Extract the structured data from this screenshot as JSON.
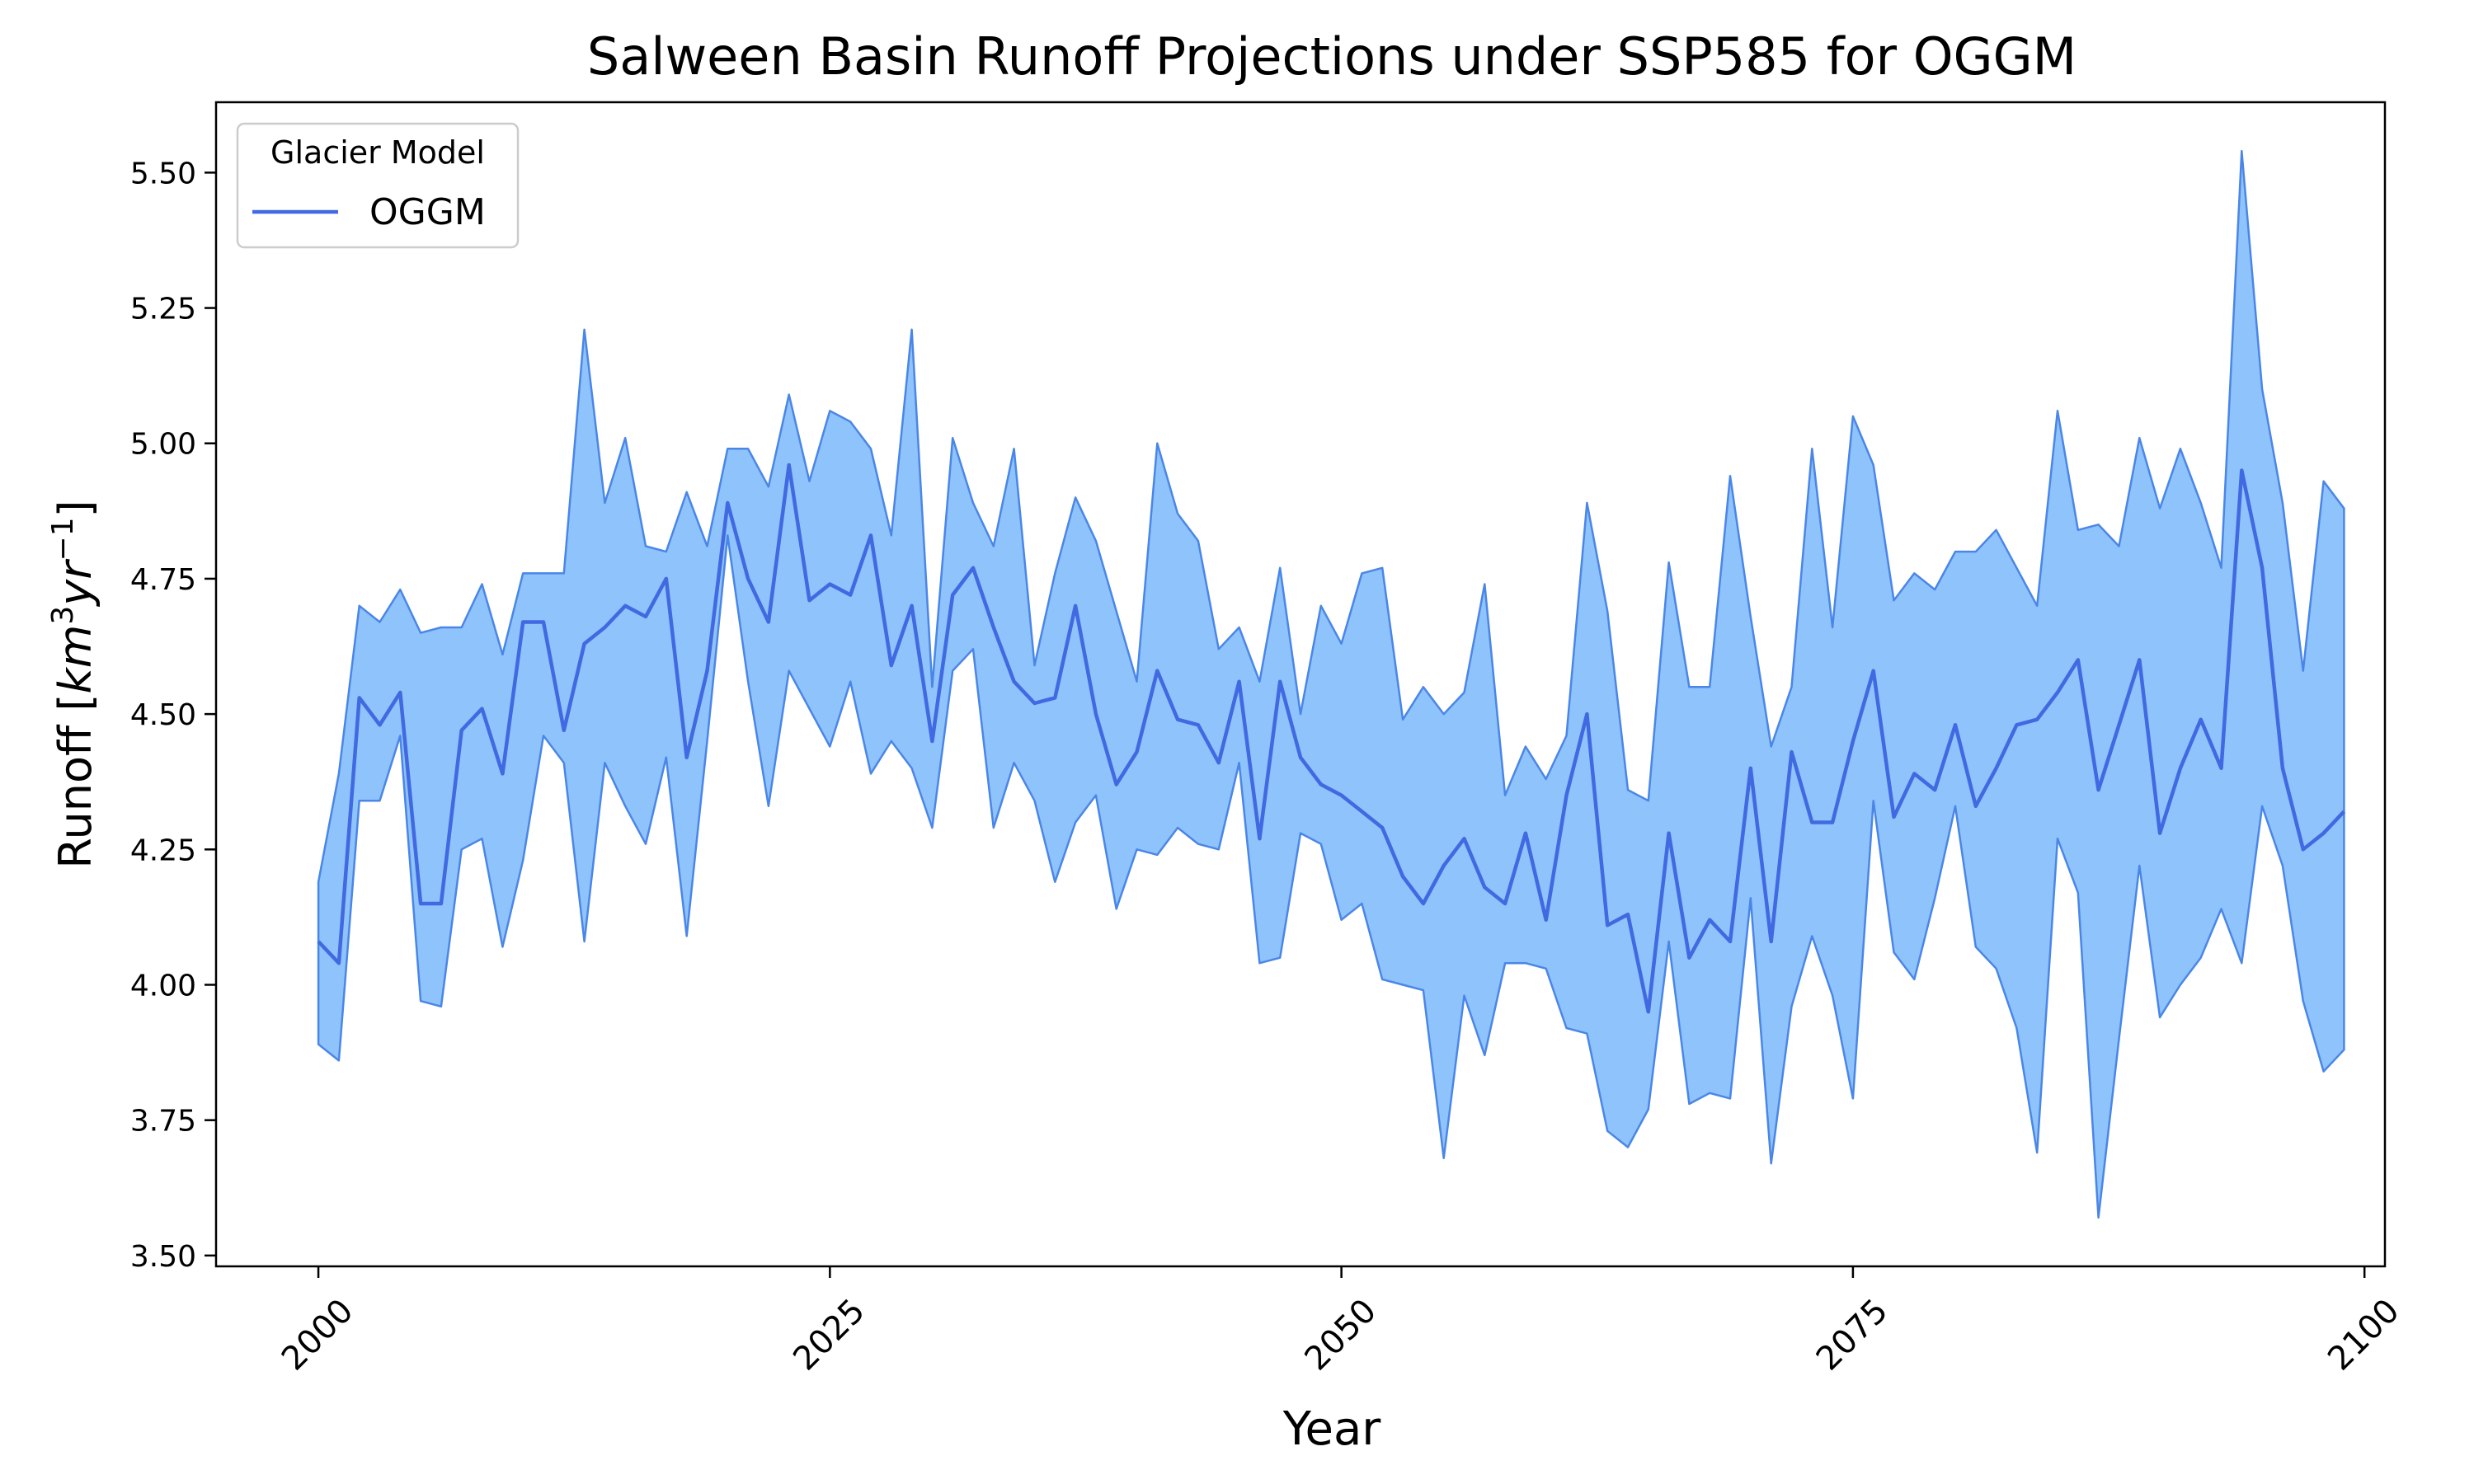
{
  "chart_data": {
    "type": "line",
    "title": "Salween Basin Runoff Projections under SSP585 for OGGM",
    "xlabel": "Year",
    "ylabel_main": "Runoff [",
    "ylabel_unit_km": "km",
    "ylabel_unit_exp1": "3",
    "ylabel_unit_yr": "yr",
    "ylabel_unit_exp2": "−1",
    "ylabel_close": "]",
    "xlim": [
      1995,
      2101
    ],
    "ylim": [
      3.48,
      5.63
    ],
    "x_ticks": [
      2000,
      2025,
      2050,
      2075,
      2100
    ],
    "x_tick_labels": [
      "2000",
      "2025",
      "2050",
      "2075",
      "2100"
    ],
    "y_ticks": [
      3.5,
      3.75,
      4.0,
      4.25,
      4.5,
      4.75,
      5.0,
      5.25,
      5.5
    ],
    "y_tick_labels": [
      "3.50",
      "3.75",
      "4.00",
      "4.25",
      "4.50",
      "4.75",
      "5.00",
      "5.25",
      "5.50"
    ],
    "grid": false,
    "legend": {
      "title": "Glacier Model",
      "placement": "top-left",
      "entries": [
        "OGGM"
      ]
    },
    "colors": {
      "line": "#4169e1",
      "band_fill": "#8fc3fc",
      "band_edge": "#4a86e8"
    },
    "x": [
      2000,
      2001,
      2002,
      2003,
      2004,
      2005,
      2006,
      2007,
      2008,
      2009,
      2010,
      2011,
      2012,
      2013,
      2014,
      2015,
      2016,
      2017,
      2018,
      2019,
      2020,
      2021,
      2022,
      2023,
      2024,
      2025,
      2026,
      2027,
      2028,
      2029,
      2030,
      2031,
      2032,
      2033,
      2034,
      2035,
      2036,
      2037,
      2038,
      2039,
      2040,
      2041,
      2042,
      2043,
      2044,
      2045,
      2046,
      2047,
      2048,
      2049,
      2050,
      2051,
      2052,
      2053,
      2054,
      2055,
      2056,
      2057,
      2058,
      2059,
      2060,
      2061,
      2062,
      2063,
      2064,
      2065,
      2066,
      2067,
      2068,
      2069,
      2070,
      2071,
      2072,
      2073,
      2074,
      2075,
      2076,
      2077,
      2078,
      2079,
      2080,
      2081,
      2082,
      2083,
      2084,
      2085,
      2086,
      2087,
      2088,
      2089,
      2090,
      2091,
      2092,
      2093,
      2094,
      2095,
      2096,
      2097,
      2098,
      2099
    ],
    "series": [
      {
        "name": "OGGM",
        "values": [
          4.08,
          4.04,
          4.53,
          4.48,
          4.54,
          4.15,
          4.15,
          4.47,
          4.51,
          4.39,
          4.67,
          4.67,
          4.47,
          4.63,
          4.66,
          4.7,
          4.68,
          4.75,
          4.42,
          4.58,
          4.89,
          4.75,
          4.67,
          4.96,
          4.71,
          4.74,
          4.72,
          4.83,
          4.59,
          4.7,
          4.45,
          4.72,
          4.77,
          4.66,
          4.56,
          4.52,
          4.53,
          4.7,
          4.5,
          4.37,
          4.43,
          4.58,
          4.49,
          4.48,
          4.41,
          4.56,
          4.27,
          4.56,
          4.42,
          4.37,
          4.35,
          4.32,
          4.29,
          4.2,
          4.15,
          4.22,
          4.27,
          4.18,
          4.15,
          4.28,
          4.12,
          4.35,
          4.5,
          4.11,
          4.13,
          3.95,
          4.28,
          4.05,
          4.12,
          4.08,
          4.4,
          4.08,
          4.43,
          4.3,
          4.3,
          4.45,
          4.58,
          4.31,
          4.39,
          4.36,
          4.48,
          4.33,
          4.4,
          4.48,
          4.49,
          4.54,
          4.6,
          4.36,
          4.48,
          4.6,
          4.28,
          4.4,
          4.49,
          4.4,
          4.95,
          4.77,
          4.4,
          4.25,
          4.28,
          4.32
        ]
      }
    ],
    "band_upper": [
      4.19,
      4.39,
      4.7,
      4.67,
      4.73,
      4.65,
      4.66,
      4.66,
      4.74,
      4.61,
      4.76,
      4.76,
      4.76,
      5.21,
      4.89,
      5.01,
      4.81,
      4.8,
      4.91,
      4.81,
      4.99,
      4.99,
      4.92,
      5.09,
      4.93,
      5.06,
      5.04,
      4.99,
      4.83,
      5.21,
      4.55,
      5.01,
      4.89,
      4.81,
      4.99,
      4.59,
      4.76,
      4.9,
      4.82,
      4.69,
      4.56,
      5.0,
      4.87,
      4.82,
      4.62,
      4.66,
      4.56,
      4.77,
      4.5,
      4.7,
      4.63,
      4.76,
      4.77,
      4.49,
      4.55,
      4.5,
      4.54,
      4.74,
      4.35,
      4.44,
      4.38,
      4.46,
      4.89,
      4.69,
      4.36,
      4.34,
      4.78,
      4.55,
      4.55,
      4.94,
      4.68,
      4.44,
      4.55,
      4.99,
      4.66,
      5.05,
      4.96,
      4.71,
      4.76,
      4.73,
      4.8,
      4.8,
      4.84,
      4.77,
      4.7,
      5.06,
      4.84,
      4.85,
      4.81,
      5.01,
      4.88,
      4.99,
      4.89,
      4.77,
      5.54,
      5.1,
      4.89,
      4.58,
      4.93,
      4.88
    ],
    "band_lower": [
      3.89,
      3.86,
      4.34,
      4.34,
      4.46,
      3.97,
      3.96,
      4.25,
      4.27,
      4.07,
      4.23,
      4.46,
      4.41,
      4.08,
      4.41,
      4.33,
      4.26,
      4.42,
      4.09,
      4.45,
      4.83,
      4.56,
      4.33,
      4.58,
      4.51,
      4.44,
      4.56,
      4.39,
      4.45,
      4.4,
      4.29,
      4.58,
      4.62,
      4.29,
      4.41,
      4.34,
      4.19,
      4.3,
      4.35,
      4.14,
      4.25,
      4.24,
      4.29,
      4.26,
      4.25,
      4.41,
      4.04,
      4.05,
      4.28,
      4.26,
      4.12,
      4.15,
      4.01,
      4.0,
      3.99,
      3.68,
      3.98,
      3.87,
      4.04,
      4.04,
      4.03,
      3.92,
      3.91,
      3.73,
      3.7,
      3.77,
      4.08,
      3.78,
      3.8,
      3.79,
      4.16,
      3.67,
      3.96,
      4.09,
      3.98,
      3.79,
      4.34,
      4.06,
      4.01,
      4.16,
      4.33,
      4.07,
      4.03,
      3.92,
      3.69,
      4.27,
      4.17,
      3.57,
      3.9,
      4.22,
      3.94,
      4.0,
      4.05,
      4.14,
      4.04,
      4.33,
      4.22,
      3.97,
      3.84,
      3.88
    ]
  }
}
